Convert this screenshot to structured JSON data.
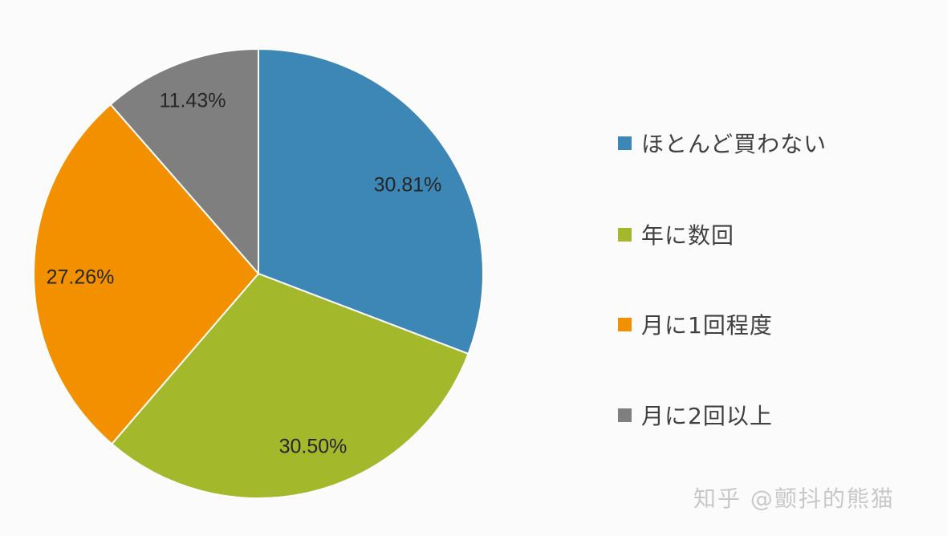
{
  "chart_data": {
    "type": "pie",
    "title": "",
    "categories": [
      "ほとんど買わない",
      "年に数回",
      "月に1回程度",
      "月に2回以上"
    ],
    "values": [
      30.81,
      30.5,
      27.26,
      11.43
    ],
    "labels": [
      "30.81%",
      "30.50%",
      "27.26%",
      "11.43%"
    ],
    "colors": [
      "#3c87b6",
      "#a3b92b",
      "#f39000",
      "#7f7f7f"
    ],
    "start_angle": "12 o'clock, clockwise",
    "legend_position": "right"
  },
  "legend": {
    "items": [
      {
        "label": "ほとんど買わない",
        "color": "#3c87b6"
      },
      {
        "label": "年に数回",
        "color": "#a3b92b"
      },
      {
        "label": "月に1回程度",
        "color": "#f39000"
      },
      {
        "label": "月に2回以上",
        "color": "#7f7f7f"
      }
    ]
  },
  "watermark": "知乎 @颤抖的熊猫"
}
